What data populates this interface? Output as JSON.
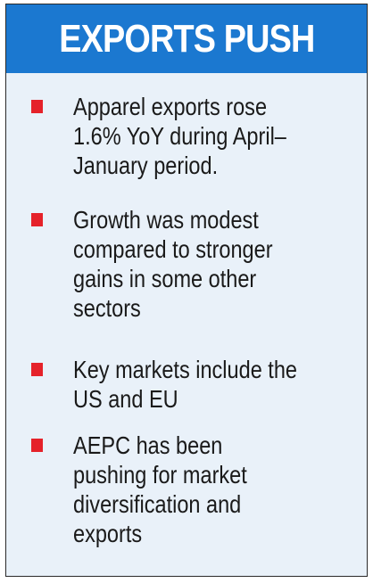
{
  "header": {
    "title": "EXPORTS PUSH"
  },
  "colors": {
    "header_bg": "#1b78d0",
    "card_bg": "#e9f1f9",
    "bullet": "#e5222a"
  },
  "items": [
    {
      "lines": [
        "Apparel exports rose",
        "1.6% YoY during April–",
        "January period."
      ]
    },
    {
      "lines": [
        "Growth was modest",
        "compared to stronger",
        "gains in some other",
        "sectors"
      ]
    },
    {
      "lines": [
        "Key markets include the",
        "US and EU"
      ]
    },
    {
      "lines": [
        "AEPC has been",
        "pushing for market",
        "diversification and",
        "exports"
      ]
    }
  ]
}
